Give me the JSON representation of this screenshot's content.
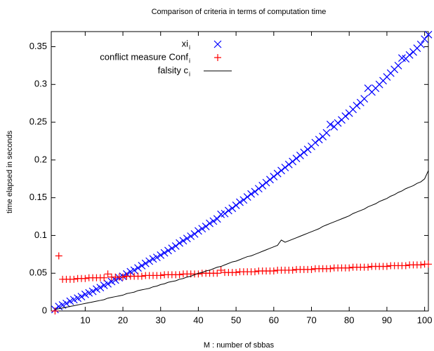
{
  "chart_data": {
    "type": "scatter",
    "title": "Comparison of criteria in terms of computation time",
    "xlabel": "M : number of sbbas",
    "ylabel": "time elapsed in seconds",
    "xlim": [
      1,
      101
    ],
    "ylim": [
      0,
      0.37
    ],
    "xticks": [
      10,
      20,
      30,
      40,
      50,
      60,
      70,
      80,
      90,
      100
    ],
    "yticks": [
      0,
      0.05,
      0.1,
      0.15,
      0.2,
      0.25,
      0.3,
      0.35
    ],
    "legend": "top-right",
    "x": [
      2,
      3,
      4,
      5,
      6,
      7,
      8,
      9,
      10,
      11,
      12,
      13,
      14,
      15,
      16,
      17,
      18,
      19,
      20,
      21,
      22,
      23,
      24,
      25,
      26,
      27,
      28,
      29,
      30,
      31,
      32,
      33,
      34,
      35,
      36,
      37,
      38,
      39,
      40,
      41,
      42,
      43,
      44,
      45,
      46,
      47,
      48,
      49,
      50,
      51,
      52,
      53,
      54,
      55,
      56,
      57,
      58,
      59,
      60,
      61,
      62,
      63,
      64,
      65,
      66,
      67,
      68,
      69,
      70,
      71,
      72,
      73,
      74,
      75,
      76,
      77,
      78,
      79,
      80,
      81,
      82,
      83,
      84,
      85,
      86,
      87,
      88,
      89,
      90,
      91,
      92,
      93,
      94,
      95,
      96,
      97,
      98,
      99,
      100,
      101
    ],
    "series": [
      {
        "name": "xi",
        "subscript": "i",
        "marker": "x",
        "color": "#0000ff",
        "values": [
          0.002,
          0.006,
          0.008,
          0.01,
          0.013,
          0.015,
          0.017,
          0.019,
          0.022,
          0.024,
          0.026,
          0.029,
          0.031,
          0.034,
          0.036,
          0.039,
          0.041,
          0.044,
          0.046,
          0.049,
          0.052,
          0.054,
          0.057,
          0.06,
          0.063,
          0.066,
          0.069,
          0.071,
          0.074,
          0.077,
          0.08,
          0.083,
          0.086,
          0.09,
          0.093,
          0.096,
          0.099,
          0.102,
          0.106,
          0.109,
          0.112,
          0.116,
          0.119,
          0.122,
          0.128,
          0.129,
          0.133,
          0.136,
          0.14,
          0.144,
          0.147,
          0.151,
          0.155,
          0.158,
          0.162,
          0.166,
          0.17,
          0.174,
          0.178,
          0.182,
          0.186,
          0.19,
          0.194,
          0.198,
          0.202,
          0.206,
          0.21,
          0.214,
          0.218,
          0.223,
          0.227,
          0.231,
          0.236,
          0.247,
          0.244,
          0.249,
          0.253,
          0.258,
          0.262,
          0.267,
          0.272,
          0.276,
          0.281,
          0.295,
          0.29,
          0.295,
          0.3,
          0.305,
          0.31,
          0.315,
          0.32,
          0.325,
          0.335,
          0.334,
          0.339,
          0.343,
          0.348,
          0.353,
          0.36,
          0.366
        ]
      },
      {
        "name": "conflict measure Conf",
        "subscript": "i",
        "marker": "+",
        "color": "#ff0000",
        "values": [
          0,
          0.073,
          0.042,
          0.042,
          0.042,
          0.042,
          0.043,
          0.043,
          0.043,
          0.044,
          0.044,
          0.044,
          0.044,
          0.044,
          0.049,
          0.045,
          0.045,
          0.045,
          0.045,
          0.046,
          0.046,
          0.046,
          0.046,
          0.046,
          0.047,
          0.047,
          0.047,
          0.047,
          0.047,
          0.048,
          0.048,
          0.048,
          0.048,
          0.048,
          0.049,
          0.049,
          0.049,
          0.049,
          0.049,
          0.05,
          0.05,
          0.05,
          0.05,
          0.05,
          0.054,
          0.051,
          0.051,
          0.051,
          0.051,
          0.052,
          0.052,
          0.052,
          0.052,
          0.052,
          0.053,
          0.053,
          0.053,
          0.053,
          0.053,
          0.054,
          0.054,
          0.054,
          0.054,
          0.054,
          0.055,
          0.055,
          0.055,
          0.055,
          0.055,
          0.056,
          0.056,
          0.056,
          0.056,
          0.056,
          0.057,
          0.057,
          0.057,
          0.057,
          0.057,
          0.058,
          0.058,
          0.058,
          0.058,
          0.058,
          0.059,
          0.059,
          0.059,
          0.059,
          0.059,
          0.06,
          0.06,
          0.06,
          0.06,
          0.06,
          0.061,
          0.061,
          0.061,
          0.061,
          0.062,
          0.062
        ]
      },
      {
        "name": "falsity c",
        "subscript": "i",
        "marker": "line",
        "color": "#000000",
        "values": [
          0.002,
          0.003,
          0.004,
          0.005,
          0.006,
          0.007,
          0.008,
          0.009,
          0.01,
          0.011,
          0.012,
          0.013,
          0.014,
          0.015,
          0.017,
          0.018,
          0.019,
          0.02,
          0.021,
          0.023,
          0.024,
          0.025,
          0.027,
          0.028,
          0.029,
          0.03,
          0.032,
          0.033,
          0.035,
          0.036,
          0.038,
          0.039,
          0.04,
          0.042,
          0.043,
          0.045,
          0.046,
          0.048,
          0.05,
          0.051,
          0.053,
          0.054,
          0.056,
          0.058,
          0.059,
          0.061,
          0.063,
          0.065,
          0.066,
          0.068,
          0.07,
          0.072,
          0.073,
          0.075,
          0.077,
          0.079,
          0.081,
          0.083,
          0.085,
          0.087,
          0.094,
          0.091,
          0.093,
          0.095,
          0.097,
          0.099,
          0.101,
          0.103,
          0.105,
          0.107,
          0.109,
          0.112,
          0.114,
          0.116,
          0.118,
          0.12,
          0.122,
          0.124,
          0.126,
          0.129,
          0.131,
          0.133,
          0.135,
          0.138,
          0.14,
          0.142,
          0.145,
          0.147,
          0.149,
          0.152,
          0.154,
          0.157,
          0.159,
          0.162,
          0.164,
          0.166,
          0.169,
          0.171,
          0.175,
          0.186
        ]
      }
    ]
  }
}
